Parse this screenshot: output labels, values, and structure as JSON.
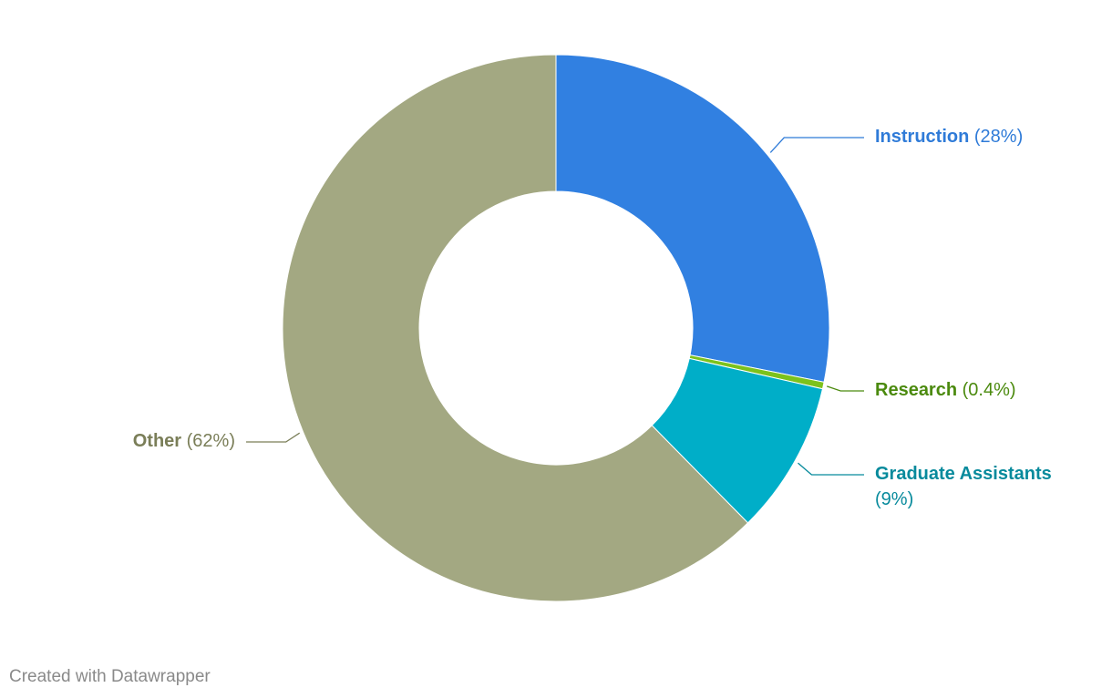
{
  "chart_data": {
    "type": "pie",
    "categories": [
      "Instruction",
      "Research",
      "Graduate Assistants",
      "Other"
    ],
    "values": [
      28,
      0.4,
      9,
      62
    ],
    "value_labels": [
      "(28%)",
      "(0.4%)",
      "(9%)",
      "(62%)"
    ],
    "colors": [
      "#3180e1",
      "#7cc21c",
      "#00aec8",
      "#a3a882"
    ],
    "label_colors": [
      "#2f7bd8",
      "#4b8a0e",
      "#078a9c",
      "#7a7e58"
    ],
    "credit": "Created with Datawrapper"
  }
}
